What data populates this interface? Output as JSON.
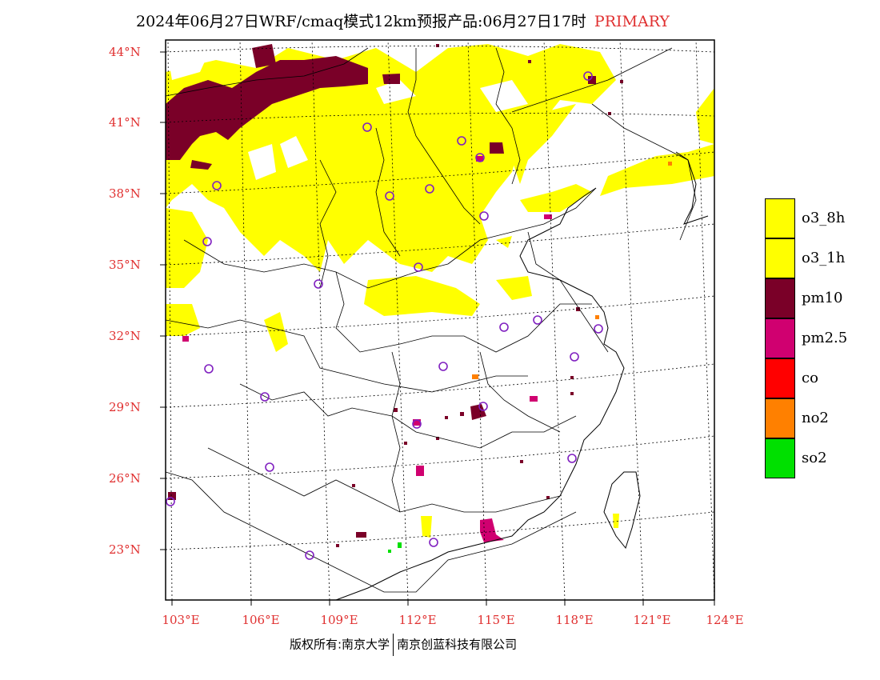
{
  "title": {
    "main": "2024年06月27日WRF/cmaq模式12km预报产品:06月27日17时",
    "tag": "PRIMARY"
  },
  "lat_labels": [
    "44°N",
    "41°N",
    "38°N",
    "35°N",
    "32°N",
    "29°N",
    "26°N",
    "23°N"
  ],
  "lon_labels": [
    "103°E",
    "106°E",
    "109°E",
    "112°E",
    "115°E",
    "118°E",
    "121°E",
    "124°E"
  ],
  "legend": [
    {
      "label": "o3_8h",
      "color": "#ffff00"
    },
    {
      "label": "o3_1h",
      "color": "#ffff00"
    },
    {
      "label": "pm10",
      "color": "#7a0028"
    },
    {
      "label": "pm2.5",
      "color": "#d00070"
    },
    {
      "label": "co",
      "color": "#ff0000"
    },
    {
      "label": "no2",
      "color": "#ff8000"
    },
    {
      "label": "so2",
      "color": "#00e000"
    }
  ],
  "copyright": {
    "left": "版权所有:南京大学",
    "right": "南京创蓝科技有限公司"
  },
  "colors": {
    "o3": "#ffff00",
    "pm10": "#7a0028",
    "pm25": "#d00070",
    "co": "#ff0000",
    "no2": "#ff8000",
    "so2": "#00e000",
    "station_marker": "#8020c0",
    "label_red": "#e03030"
  }
}
